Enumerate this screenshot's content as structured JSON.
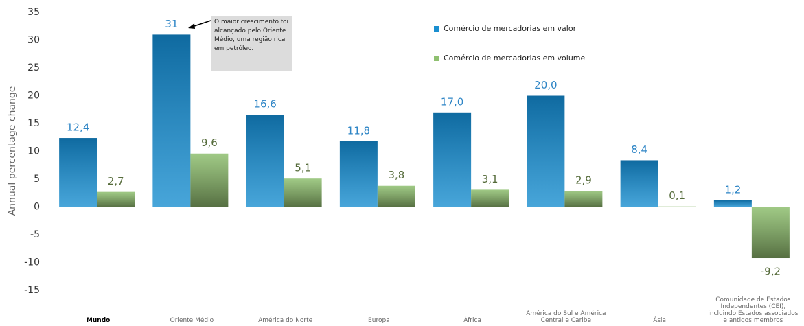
{
  "chart_data": {
    "type": "bar",
    "y_label": "Annual percentage change",
    "annotation": "O maior crescimento foi alcançado pelo Oriente Médio, uma região rica em petróleo.",
    "categories": [
      "Mundo",
      "Oriente Médio",
      "América do Norte",
      "Europa",
      "África",
      "América do Sul e América Central e Caribe",
      "Ásia",
      "Comunidade de Estados Independentes (CEI), incluindo Estados associados e antigos membros"
    ],
    "series": [
      {
        "name": "Comércio de mercadorias em valor",
        "color": "#1a8fd0",
        "values": [
          12.4,
          31,
          16.6,
          11.8,
          17.0,
          20.0,
          8.4,
          1.2
        ],
        "value_labels": [
          "12,4",
          "31",
          "16,6",
          "11,8",
          "17,0",
          "20,0",
          "8,4",
          "1,2"
        ]
      },
      {
        "name": "Comércio de mercadorias em volume",
        "color": "#8fc070",
        "values": [
          2.7,
          9.6,
          5.1,
          3.8,
          3.1,
          2.9,
          0.1,
          -9.2
        ],
        "value_labels": [
          "2,7",
          "9,6",
          "5,1",
          "3,8",
          "3,1",
          "2,9",
          "0,1",
          "-9,2"
        ]
      }
    ],
    "ylim": [
      -15,
      35
    ],
    "yticks": [
      -15,
      -10,
      -5,
      0,
      5,
      10,
      15,
      20,
      25,
      30,
      35
    ],
    "grid": false,
    "legend": "top"
  }
}
